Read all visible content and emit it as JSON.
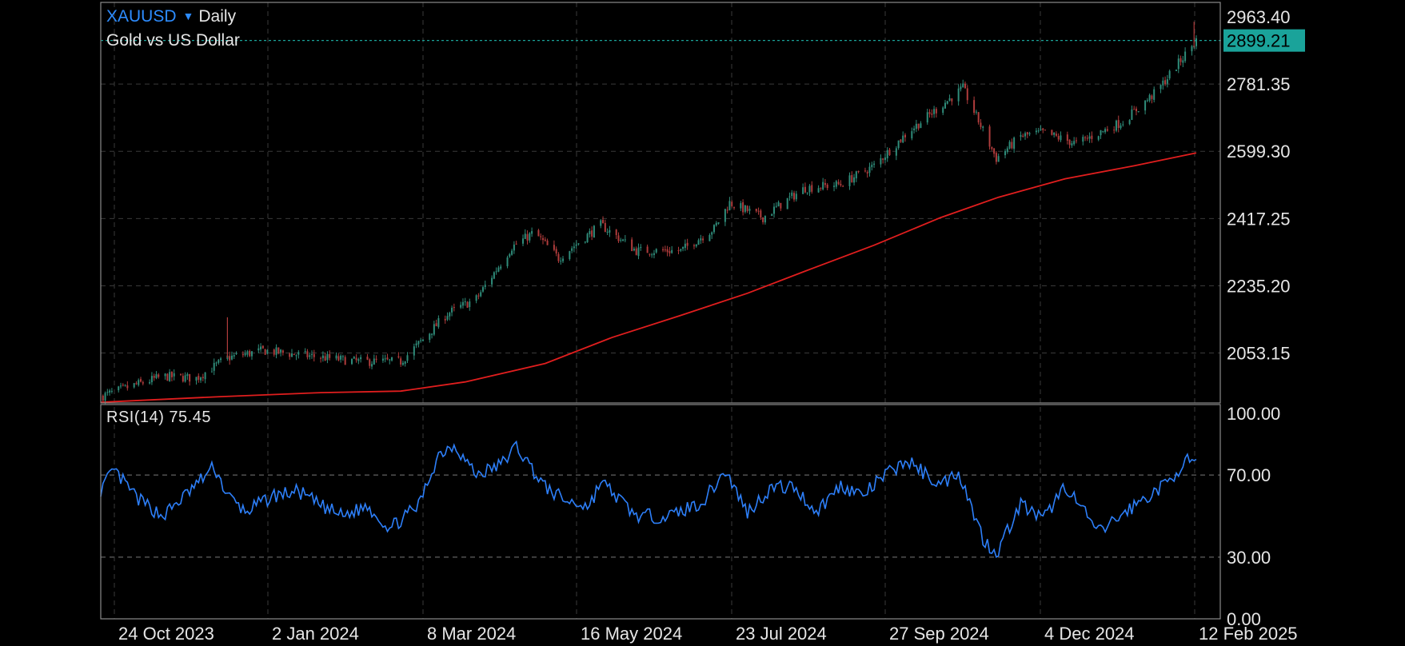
{
  "header": {
    "symbol": "XAUUSD",
    "caret_icon": "triangle-down-icon",
    "timeframe": "Daily",
    "description": "Gold vs US Dollar"
  },
  "price_axis": {
    "labels": [
      "2963.40",
      "2781.35",
      "2599.30",
      "2417.25",
      "2235.20",
      "2053.15"
    ],
    "current_price": "2899.21"
  },
  "rsi": {
    "name": "RSI(14)",
    "value": "75.45",
    "axis_labels": [
      "100.00",
      "70.00",
      "30.00",
      "0.00"
    ]
  },
  "time_axis": {
    "labels": [
      "24 Oct 2023",
      "2 Jan 2024",
      "8 Mar 2024",
      "16 May 2024",
      "23 Jul 2024",
      "27 Sep 2024",
      "4 Dec 2024",
      "12 Feb 2025"
    ]
  },
  "colors": {
    "background": "#000000",
    "grid": "#3a3a3a",
    "candle_up": "#2f8c7a",
    "candle_down": "#b03c3c",
    "moving_average": "#e01e1e",
    "rsi_line": "#2d7ff9",
    "price_tag": "#1aa39a",
    "symbol": "#2d8cff"
  },
  "chart_data": [
    {
      "type": "candlestick",
      "title": "XAUUSD Daily",
      "subtitle": "Gold vs US Dollar",
      "x_range": [
        "2023-10-08",
        "2025-02-12"
      ],
      "ylim": [
        1918,
        2963.4
      ],
      "y_ticks": [
        2053.15,
        2235.2,
        2417.25,
        2599.3,
        2781.35,
        2963.4
      ],
      "last_price": 2899.21,
      "grid": true,
      "approx_close_path": {
        "x": [
          "2023-10-08",
          "2023-10-20",
          "2023-11-05",
          "2023-11-20",
          "2023-12-04",
          "2023-12-20",
          "2024-01-10",
          "2024-02-01",
          "2024-02-20",
          "2024-03-01",
          "2024-03-12",
          "2024-03-25",
          "2024-04-10",
          "2024-04-20",
          "2024-05-01",
          "2024-05-20",
          "2024-06-05",
          "2024-06-25",
          "2024-07-10",
          "2024-07-17",
          "2024-08-01",
          "2024-08-10",
          "2024-08-20",
          "2024-09-05",
          "2024-09-20",
          "2024-10-05",
          "2024-10-30",
          "2024-11-14",
          "2024-11-25",
          "2024-12-05",
          "2024-12-20",
          "2025-01-10",
          "2025-01-25",
          "2025-02-12"
        ],
        "y": [
          1935,
          1960,
          1990,
          1985,
          2040,
          2060,
          2045,
          2030,
          2030,
          2090,
          2160,
          2200,
          2340,
          2380,
          2310,
          2400,
          2330,
          2330,
          2390,
          2460,
          2420,
          2460,
          2500,
          2510,
          2560,
          2650,
          2770,
          2580,
          2640,
          2650,
          2620,
          2680,
          2760,
          2900
        ]
      }
    },
    {
      "type": "line",
      "name": "moving average",
      "x": [
        "2023-10-08",
        "2023-12-01",
        "2024-01-15",
        "2024-02-20",
        "2024-03-20",
        "2024-04-25",
        "2024-05-25",
        "2024-06-25",
        "2024-07-25",
        "2024-08-20",
        "2024-09-20",
        "2024-10-20",
        "2024-11-15",
        "2024-12-15",
        "2025-01-15",
        "2025-02-12"
      ],
      "y": [
        1920,
        1935,
        1946,
        1950,
        1975,
        2025,
        2095,
        2155,
        2215,
        2275,
        2345,
        2420,
        2475,
        2525,
        2560,
        2595
      ]
    },
    {
      "type": "line",
      "name": "RSI(14)",
      "ylim": [
        0,
        100
      ],
      "y_ticks": [
        0,
        30,
        70,
        100
      ],
      "x": [
        "2023-10-08",
        "2023-10-14",
        "2023-10-25",
        "2023-11-05",
        "2023-11-15",
        "2023-11-28",
        "2023-12-04",
        "2023-12-12",
        "2023-12-25",
        "2024-01-05",
        "2024-01-15",
        "2024-01-25",
        "2024-02-05",
        "2024-02-15",
        "2024-02-28",
        "2024-03-08",
        "2024-03-15",
        "2024-03-25",
        "2024-04-05",
        "2024-04-12",
        "2024-04-25",
        "2024-05-05",
        "2024-05-15",
        "2024-05-20",
        "2024-06-05",
        "2024-06-20",
        "2024-07-05",
        "2024-07-15",
        "2024-07-25",
        "2024-08-05",
        "2024-08-15",
        "2024-08-25",
        "2024-09-05",
        "2024-09-15",
        "2024-09-25",
        "2024-10-05",
        "2024-10-20",
        "2024-10-28",
        "2024-11-08",
        "2024-11-14",
        "2024-11-25",
        "2024-12-05",
        "2024-12-15",
        "2024-12-30",
        "2025-01-15",
        "2025-01-30",
        "2025-02-07",
        "2025-02-12"
      ],
      "y": [
        63,
        72,
        58,
        50,
        60,
        74,
        60,
        52,
        60,
        62,
        55,
        50,
        55,
        44,
        55,
        80,
        85,
        70,
        75,
        84,
        64,
        57,
        55,
        67,
        50,
        50,
        57,
        72,
        52,
        64,
        64,
        52,
        65,
        60,
        70,
        77,
        65,
        72,
        39,
        32,
        56,
        48,
        65,
        42,
        55,
        66,
        77,
        75
      ]
    }
  ]
}
